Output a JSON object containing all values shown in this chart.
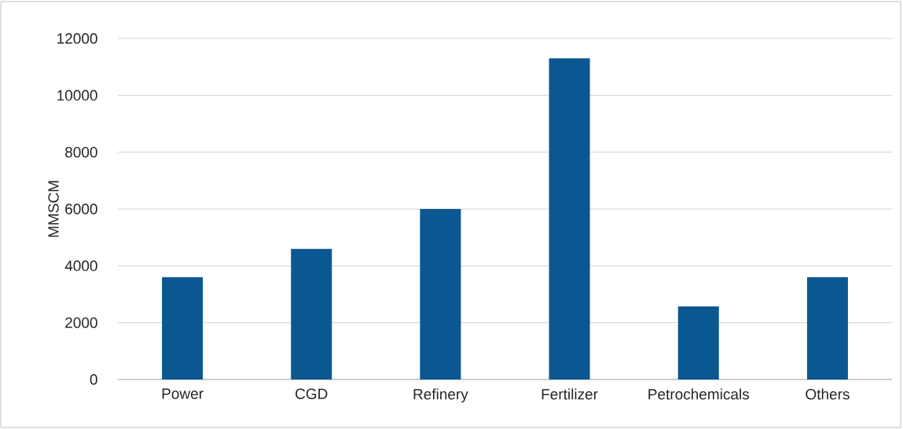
{
  "chart_data": {
    "type": "bar",
    "ylabel": "MMSCM",
    "categories": [
      "Power",
      "CGD",
      "Refinery",
      "Fertilizer",
      "Petrochemicals",
      "Others"
    ],
    "values": [
      3600,
      4600,
      6000,
      11300,
      2570,
      3600
    ],
    "color": "#0b5791",
    "ylim": [
      0,
      12000
    ],
    "yticks": [
      0,
      2000,
      4000,
      6000,
      8000,
      10000,
      12000
    ],
    "grid": "y"
  }
}
